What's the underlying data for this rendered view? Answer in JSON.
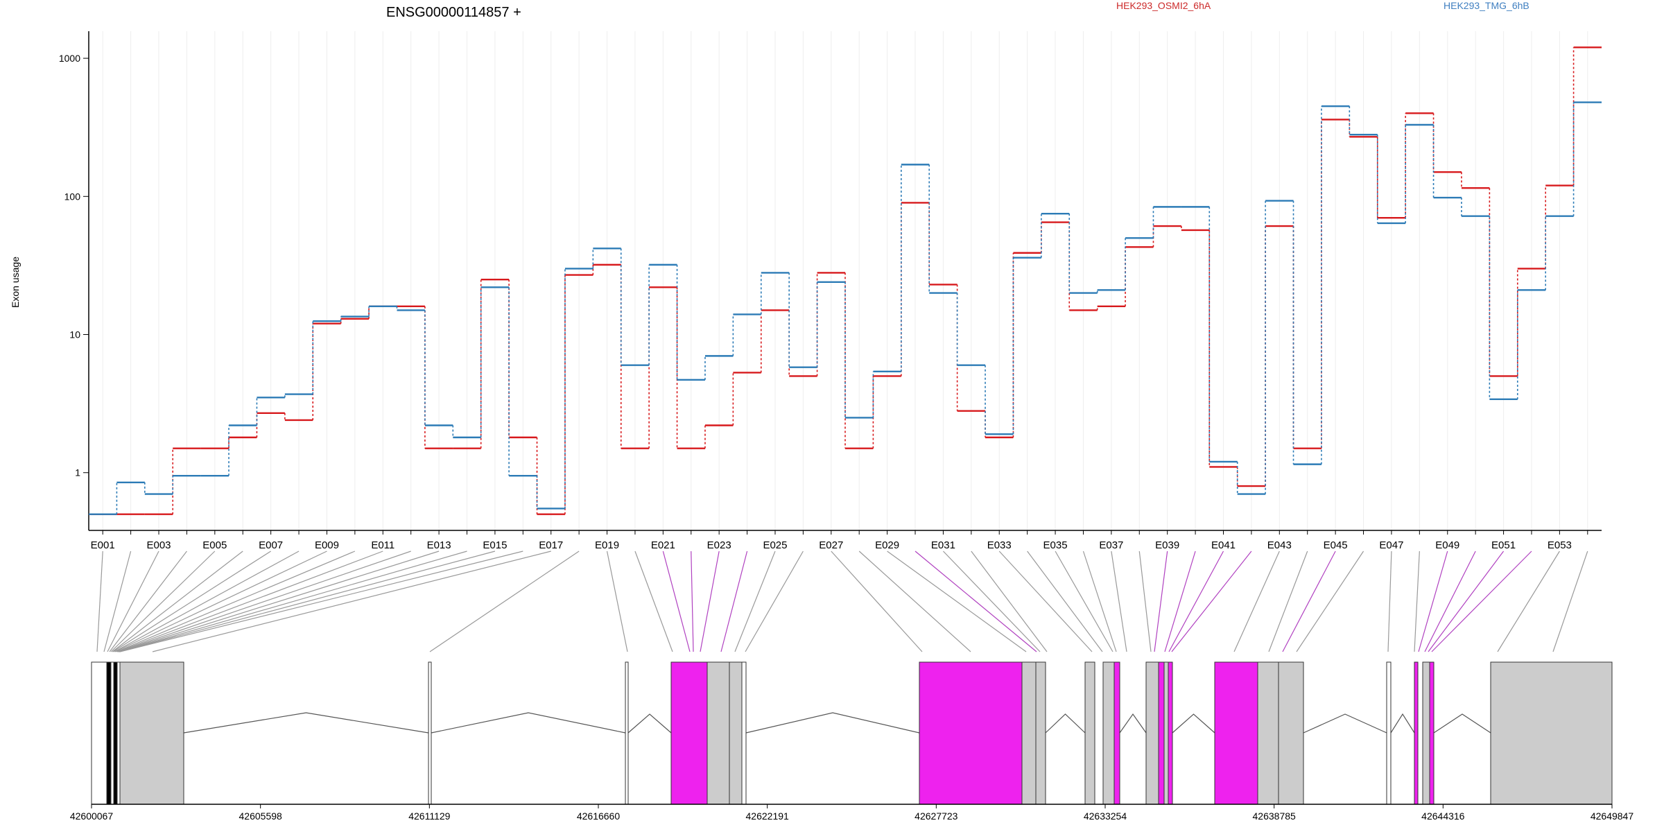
{
  "chart_data": {
    "type": "line",
    "title": "ENSG00000114857 +",
    "ylabel": "Exon usage",
    "yscale": "log",
    "ylim": [
      0.4,
      1500
    ],
    "yticks": [
      {
        "value": 1,
        "label": "1"
      },
      {
        "value": 10,
        "label": "10"
      },
      {
        "value": 100,
        "label": "100"
      },
      {
        "value": 1000,
        "label": "1000"
      }
    ],
    "exons": [
      "E001",
      "E002",
      "E003",
      "E004",
      "E005",
      "E006",
      "E007",
      "E008",
      "E009",
      "E010",
      "E011",
      "E012",
      "E013",
      "E014",
      "E015",
      "E016",
      "E017",
      "E018",
      "E019",
      "E020",
      "E021",
      "E022",
      "E023",
      "E024",
      "E025",
      "E026",
      "E027",
      "E028",
      "E029",
      "E030",
      "E031",
      "E032",
      "E033",
      "E034",
      "E035",
      "E036",
      "E037",
      "E038",
      "E039",
      "E040",
      "E041",
      "E042",
      "E043",
      "E044",
      "E045",
      "E046",
      "E047",
      "E048",
      "E049",
      "E050",
      "E051",
      "E052",
      "E053",
      "E054"
    ],
    "xtick_labels": [
      "E001",
      "E003",
      "E005",
      "E007",
      "E009",
      "E011",
      "E013",
      "E015",
      "E017",
      "E019",
      "E021",
      "E023",
      "E025",
      "E027",
      "E029",
      "E031",
      "E033",
      "E035",
      "E037",
      "E039",
      "E041",
      "E043",
      "E045",
      "E047",
      "E049",
      "E051",
      "E053"
    ],
    "grid": "vertical",
    "series": [
      {
        "name": "HEK293_OSMI2_6hA",
        "color": "#d7191c",
        "values": [
          0.5,
          0.5,
          0.5,
          1.5,
          1.5,
          1.8,
          2.7,
          2.4,
          12,
          13,
          16,
          16,
          1.5,
          1.5,
          25,
          1.8,
          0.5,
          27,
          32,
          1.5,
          22,
          1.5,
          2.2,
          5.3,
          15,
          5,
          28,
          1.5,
          5,
          90,
          23,
          2.8,
          1.8,
          39,
          65,
          15,
          16,
          43,
          61,
          57,
          1.1,
          0.8,
          61,
          1.5,
          360,
          270,
          70,
          400,
          150,
          115,
          5,
          30,
          120,
          1200
        ]
      },
      {
        "name": "HEK293_TMG_6hB",
        "color": "#2c7bb6",
        "values": [
          0.5,
          0.85,
          0.7,
          0.95,
          0.95,
          2.2,
          3.5,
          3.7,
          12.5,
          13.5,
          16,
          15,
          2.2,
          1.8,
          22,
          0.95,
          0.55,
          30,
          42,
          6,
          32,
          4.7,
          7,
          14,
          28,
          5.8,
          24,
          2.5,
          5.4,
          170,
          20,
          6,
          1.9,
          36,
          75,
          20,
          21,
          50,
          84,
          84,
          1.2,
          0.7,
          93,
          1.15,
          450,
          280,
          64,
          330,
          98,
          72,
          3.4,
          21,
          72,
          480
        ]
      }
    ],
    "gene_track": {
      "coordinates": [
        "42600067",
        "42605598",
        "42611129",
        "42616660",
        "42622191",
        "42627723",
        "42633254",
        "42638785",
        "42644316",
        "42649847"
      ]
    }
  }
}
